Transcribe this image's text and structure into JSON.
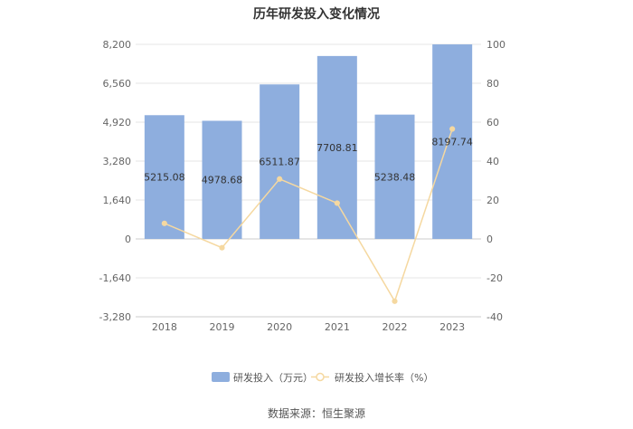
{
  "chart_data": {
    "type": "bar",
    "title": "历年研发投入变化情况",
    "categories": [
      "2018",
      "2019",
      "2020",
      "2021",
      "2022",
      "2023"
    ],
    "series": [
      {
        "name": "研发投入（万元）",
        "type": "bar",
        "axis": "left",
        "color": "#8eaede",
        "values": [
          5215.08,
          4978.68,
          6511.87,
          7708.81,
          5238.48,
          8197.74
        ],
        "labels": [
          "5215.08",
          "4978.68",
          "6511.87",
          "7708.81",
          "5238.48",
          "8197.74"
        ]
      },
      {
        "name": "研发投入增长率（%）",
        "type": "line",
        "axis": "right",
        "color": "#f5d8a0",
        "values": [
          8,
          -4.5,
          30.8,
          18.4,
          -32.0,
          56.5
        ]
      }
    ],
    "yleft": {
      "min": -3280,
      "max": 8200,
      "ticks": [
        "8,200",
        "6,560",
        "4,920",
        "3,280",
        "1,640",
        "0",
        "-1,640",
        "-3,280"
      ]
    },
    "yright": {
      "min": -40,
      "max": 100,
      "ticks": [
        "100",
        "80",
        "60",
        "40",
        "20",
        "0",
        "-20",
        "-40"
      ]
    },
    "legend_position": "bottom-center",
    "grid": true
  },
  "source": "数据来源：恒生聚源"
}
